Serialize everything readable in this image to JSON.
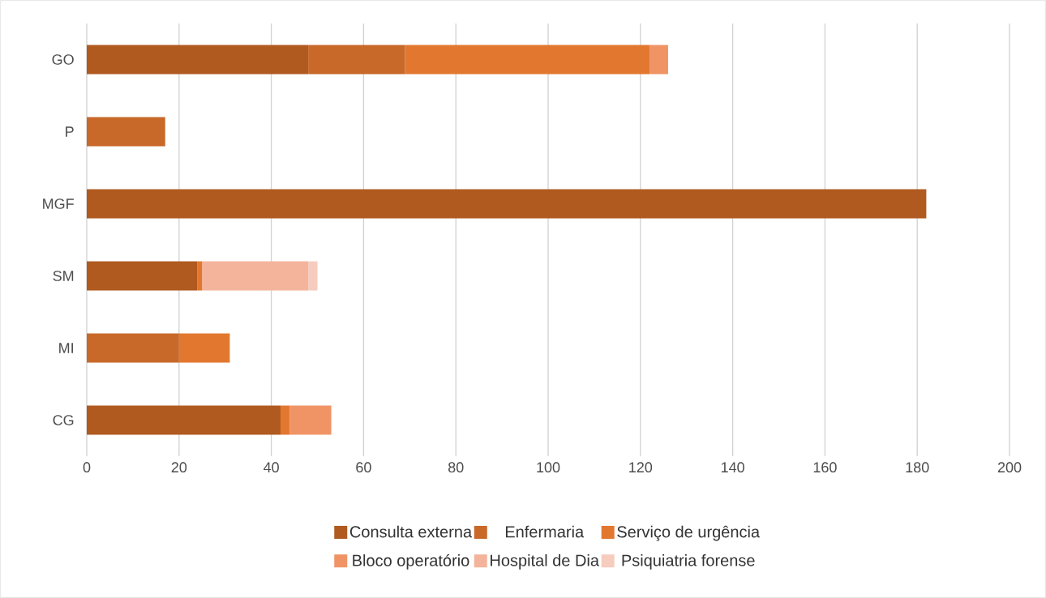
{
  "chart_data": {
    "type": "bar",
    "orientation": "horizontal",
    "stacked": true,
    "categories": [
      "GO",
      "P",
      "MGF",
      "SM",
      "MI",
      "CG"
    ],
    "series": [
      {
        "name": "Consulta externa",
        "color": "#b05a20",
        "values": [
          48,
          null,
          182,
          24,
          null,
          42
        ]
      },
      {
        "name": "Enfermaria",
        "color": "#c8692a",
        "values": [
          21,
          17,
          null,
          null,
          20,
          null
        ]
      },
      {
        "name": "Serviço de urgência",
        "color": "#e27830",
        "values": [
          53,
          null,
          null,
          1,
          11,
          2
        ]
      },
      {
        "name": "Bloco operatório",
        "color": "#f09466",
        "values": [
          4,
          null,
          null,
          null,
          null,
          9
        ]
      },
      {
        "name": "Hospital de Dia",
        "color": "#f4b49c",
        "values": [
          null,
          null,
          null,
          23,
          null,
          null
        ]
      },
      {
        "name": "Psiquiatria forense",
        "color": "#f6ccbe",
        "values": [
          null,
          null,
          null,
          2,
          null,
          null
        ]
      }
    ],
    "xlim": [
      0,
      200
    ],
    "xticks": [
      0,
      20,
      40,
      60,
      80,
      100,
      120,
      140,
      160,
      180,
      200
    ],
    "grid": "x",
    "legend": "bottom"
  }
}
